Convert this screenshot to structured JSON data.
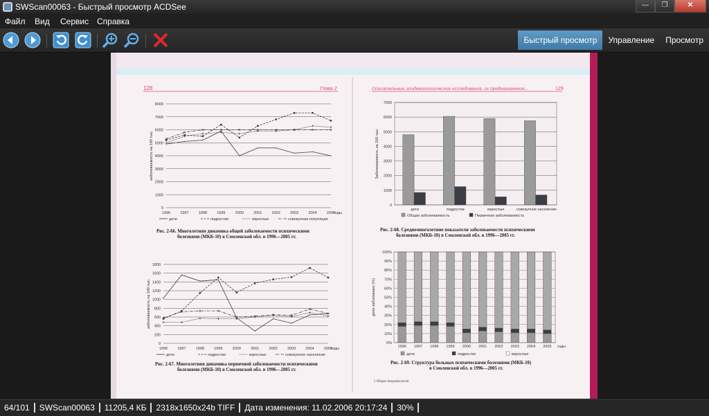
{
  "window": {
    "title": "SWScan00063 - Быстрый просмотр ACDSee"
  },
  "menu": [
    "Файл",
    "Вид",
    "Сервис",
    "Справка"
  ],
  "modes": [
    "Быстрый просмотр",
    "Управление",
    "Просмотр"
  ],
  "status": [
    "64/101",
    "SWScan00063",
    "11205,4 КБ",
    "2318x1650x24b TIFF",
    "Дата изменения: 11.02.2006 20:17:24",
    "30%"
  ],
  "page": {
    "left_header": {
      "num": "128",
      "chapter": "Глава 2"
    },
    "right_header": {
      "title": "Описательные эпидемиологические исследования, их предназначение...",
      "num": "129"
    },
    "footnote": "5 Общая эпидемиология",
    "fig66": {
      "caption1": "Рис. 2-66. Многолетняя динамика общей заболеваемости психическими",
      "caption2": "болезнями (МКБ-10) в Смоленской обл. в 1996—2005 гг."
    },
    "fig67": {
      "caption1": "Рис. 2-67. Многолетняя динамика первичной заболеваемости психическими",
      "caption2": "болезнями (МКБ-10) в Смоленской обл. в 1996—2005 гг."
    },
    "fig68": {
      "caption1": "Рис. 2-68. Среднемноголетние показатели заболеваемости психическими",
      "caption2": "болезнями (МКБ-10) в Смоленской обл. в 1996—2005 гг."
    },
    "fig69": {
      "caption1": "Рис. 2-69. Структура больных психическими болезнями (МКБ-10)",
      "caption2": "в Смоленской обл. в 1996—2005 гг."
    }
  },
  "chart_data": [
    {
      "id": "c66",
      "type": "line",
      "x": [
        "1996",
        "1997",
        "1998",
        "1999",
        "2000",
        "2001",
        "2002",
        "2003",
        "2004",
        "2005"
      ],
      "xlabel": "годы",
      "ylabel": "заболеваемость на 100 тыс.",
      "ylim": [
        0,
        8000
      ],
      "yticks": [
        0,
        1000,
        2000,
        3000,
        4000,
        5000,
        6000,
        7000,
        8000
      ],
      "series": [
        {
          "name": "дети",
          "values": [
            4900,
            5100,
            5200,
            5900,
            4000,
            4600,
            4600,
            4200,
            4300,
            4000
          ]
        },
        {
          "name": "подростки",
          "values": [
            5200,
            5600,
            5500,
            6400,
            5400,
            6300,
            6800,
            7300,
            7300,
            6700
          ]
        },
        {
          "name": "взрослые",
          "values": [
            5000,
            5500,
            5700,
            5800,
            5700,
            5900,
            5900,
            6000,
            6300,
            6200
          ]
        },
        {
          "name": "совокупная популяция",
          "values": [
            5300,
            5800,
            6000,
            6000,
            6000,
            6000,
            6000,
            6000,
            6000,
            6000
          ]
        }
      ]
    },
    {
      "id": "c67",
      "type": "line",
      "x": [
        "1996",
        "1997",
        "1998",
        "1999",
        "2000",
        "2001",
        "2002",
        "2003",
        "2004",
        "2005"
      ],
      "xlabel": "годы",
      "ylabel": "заболеваемость на 100 тыс.",
      "ylim": [
        0,
        1800
      ],
      "yticks": [
        0,
        200,
        400,
        600,
        800,
        1000,
        1200,
        1400,
        1600,
        1800
      ],
      "series": [
        {
          "name": "дети",
          "values": [
            1030,
            1560,
            1420,
            1450,
            580,
            280,
            560,
            460,
            650,
            680
          ]
        },
        {
          "name": "подростки",
          "values": [
            560,
            740,
            1150,
            1500,
            1160,
            1370,
            1460,
            1510,
            1720,
            1500
          ]
        },
        {
          "name": "взрослые",
          "values": [
            480,
            480,
            570,
            560,
            560,
            600,
            640,
            610,
            700,
            620
          ]
        },
        {
          "name": "совокупное население",
          "values": [
            580,
            720,
            740,
            740,
            600,
            620,
            650,
            640,
            780,
            680
          ]
        }
      ]
    },
    {
      "id": "c68",
      "type": "bar",
      "categories": [
        "дети",
        "подростки",
        "взрослые",
        "совокупное население"
      ],
      "ylabel": "Заболеваемость на 100 тыс.",
      "ylim": [
        0,
        7000
      ],
      "yticks": [
        0,
        1000,
        2000,
        3000,
        4000,
        5000,
        6000,
        7000
      ],
      "series": [
        {
          "name": "Общая заболеваемость",
          "values": [
            4800,
            6050,
            5900,
            5750
          ],
          "color": "#9a9a9a"
        },
        {
          "name": "Первичная заболеваемость",
          "values": [
            850,
            1250,
            550,
            680
          ],
          "color": "#3d3d45"
        }
      ]
    },
    {
      "id": "c69",
      "type": "bar",
      "stacked": true,
      "categories": [
        "1996",
        "1997",
        "1998",
        "1999",
        "2000",
        "2001",
        "2002",
        "2003",
        "2004",
        "2005"
      ],
      "xlabel": "годы",
      "ylabel": "доля заболевших (%)",
      "ylim": [
        0,
        100
      ],
      "yticks": [
        0,
        10,
        20,
        30,
        40,
        50,
        60,
        70,
        80,
        90,
        100
      ],
      "series": [
        {
          "name": "дети",
          "values": [
            18,
            19,
            19,
            18,
            11,
            13,
            12,
            11,
            11,
            10
          ],
          "color": "#9a9a9a"
        },
        {
          "name": "подростки",
          "values": [
            4,
            4,
            4,
            4,
            4,
            4,
            4,
            4,
            4,
            4
          ],
          "color": "#3d3d45"
        },
        {
          "name": "взрослые",
          "values": [
            78,
            77,
            77,
            78,
            85,
            83,
            84,
            85,
            85,
            86
          ],
          "color": "#a8a8a8"
        }
      ]
    }
  ]
}
